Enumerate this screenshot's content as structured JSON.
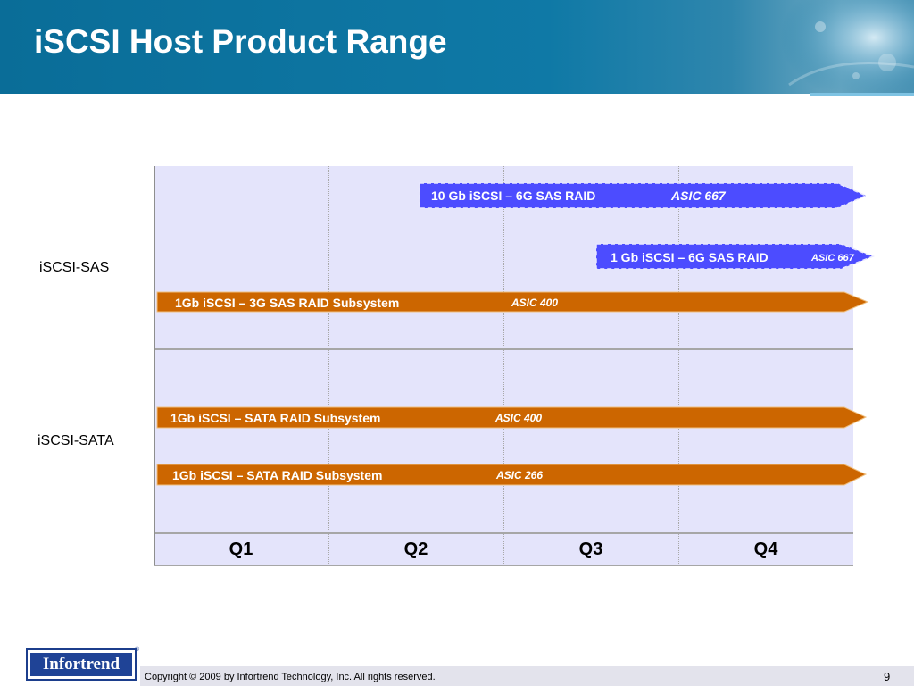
{
  "slide": {
    "title": "iSCSI Host Product Range"
  },
  "rows": [
    {
      "label": "iSCSI-SAS"
    },
    {
      "label": "iSCSI-SATA"
    }
  ],
  "quarters": [
    "Q1",
    "Q2",
    "Q3",
    "Q4"
  ],
  "arrows": [
    {
      "product": "10 Gb iSCSI – 6G SAS  RAID",
      "asic": "ASIC 667",
      "style": "dashed",
      "color": "#4c4cff"
    },
    {
      "product": "1 Gb iSCSI – 6G SAS  RAID",
      "asic": "ASIC 667",
      "style": "dashed",
      "color": "#4c4cff"
    },
    {
      "product": "1Gb iSCSI – 3G SAS  RAID Subsystem",
      "asic": "ASIC 400",
      "style": "solid",
      "color": "#cc6600"
    },
    {
      "product": "1Gb iSCSI – SATA   RAID Subsystem",
      "asic": "ASIC 400",
      "style": "solid",
      "color": "#cc6600"
    },
    {
      "product": "1Gb iSCSI – SATA   RAID Subsystem",
      "asic": "ASIC 266",
      "style": "solid",
      "color": "#cc6600"
    }
  ],
  "footer": {
    "logo_text": "Infortrend",
    "trademark": "®",
    "copyright": "Copyright © 2009 by Infortrend Technology, Inc. All rights reserved.",
    "page_number": "9"
  }
}
